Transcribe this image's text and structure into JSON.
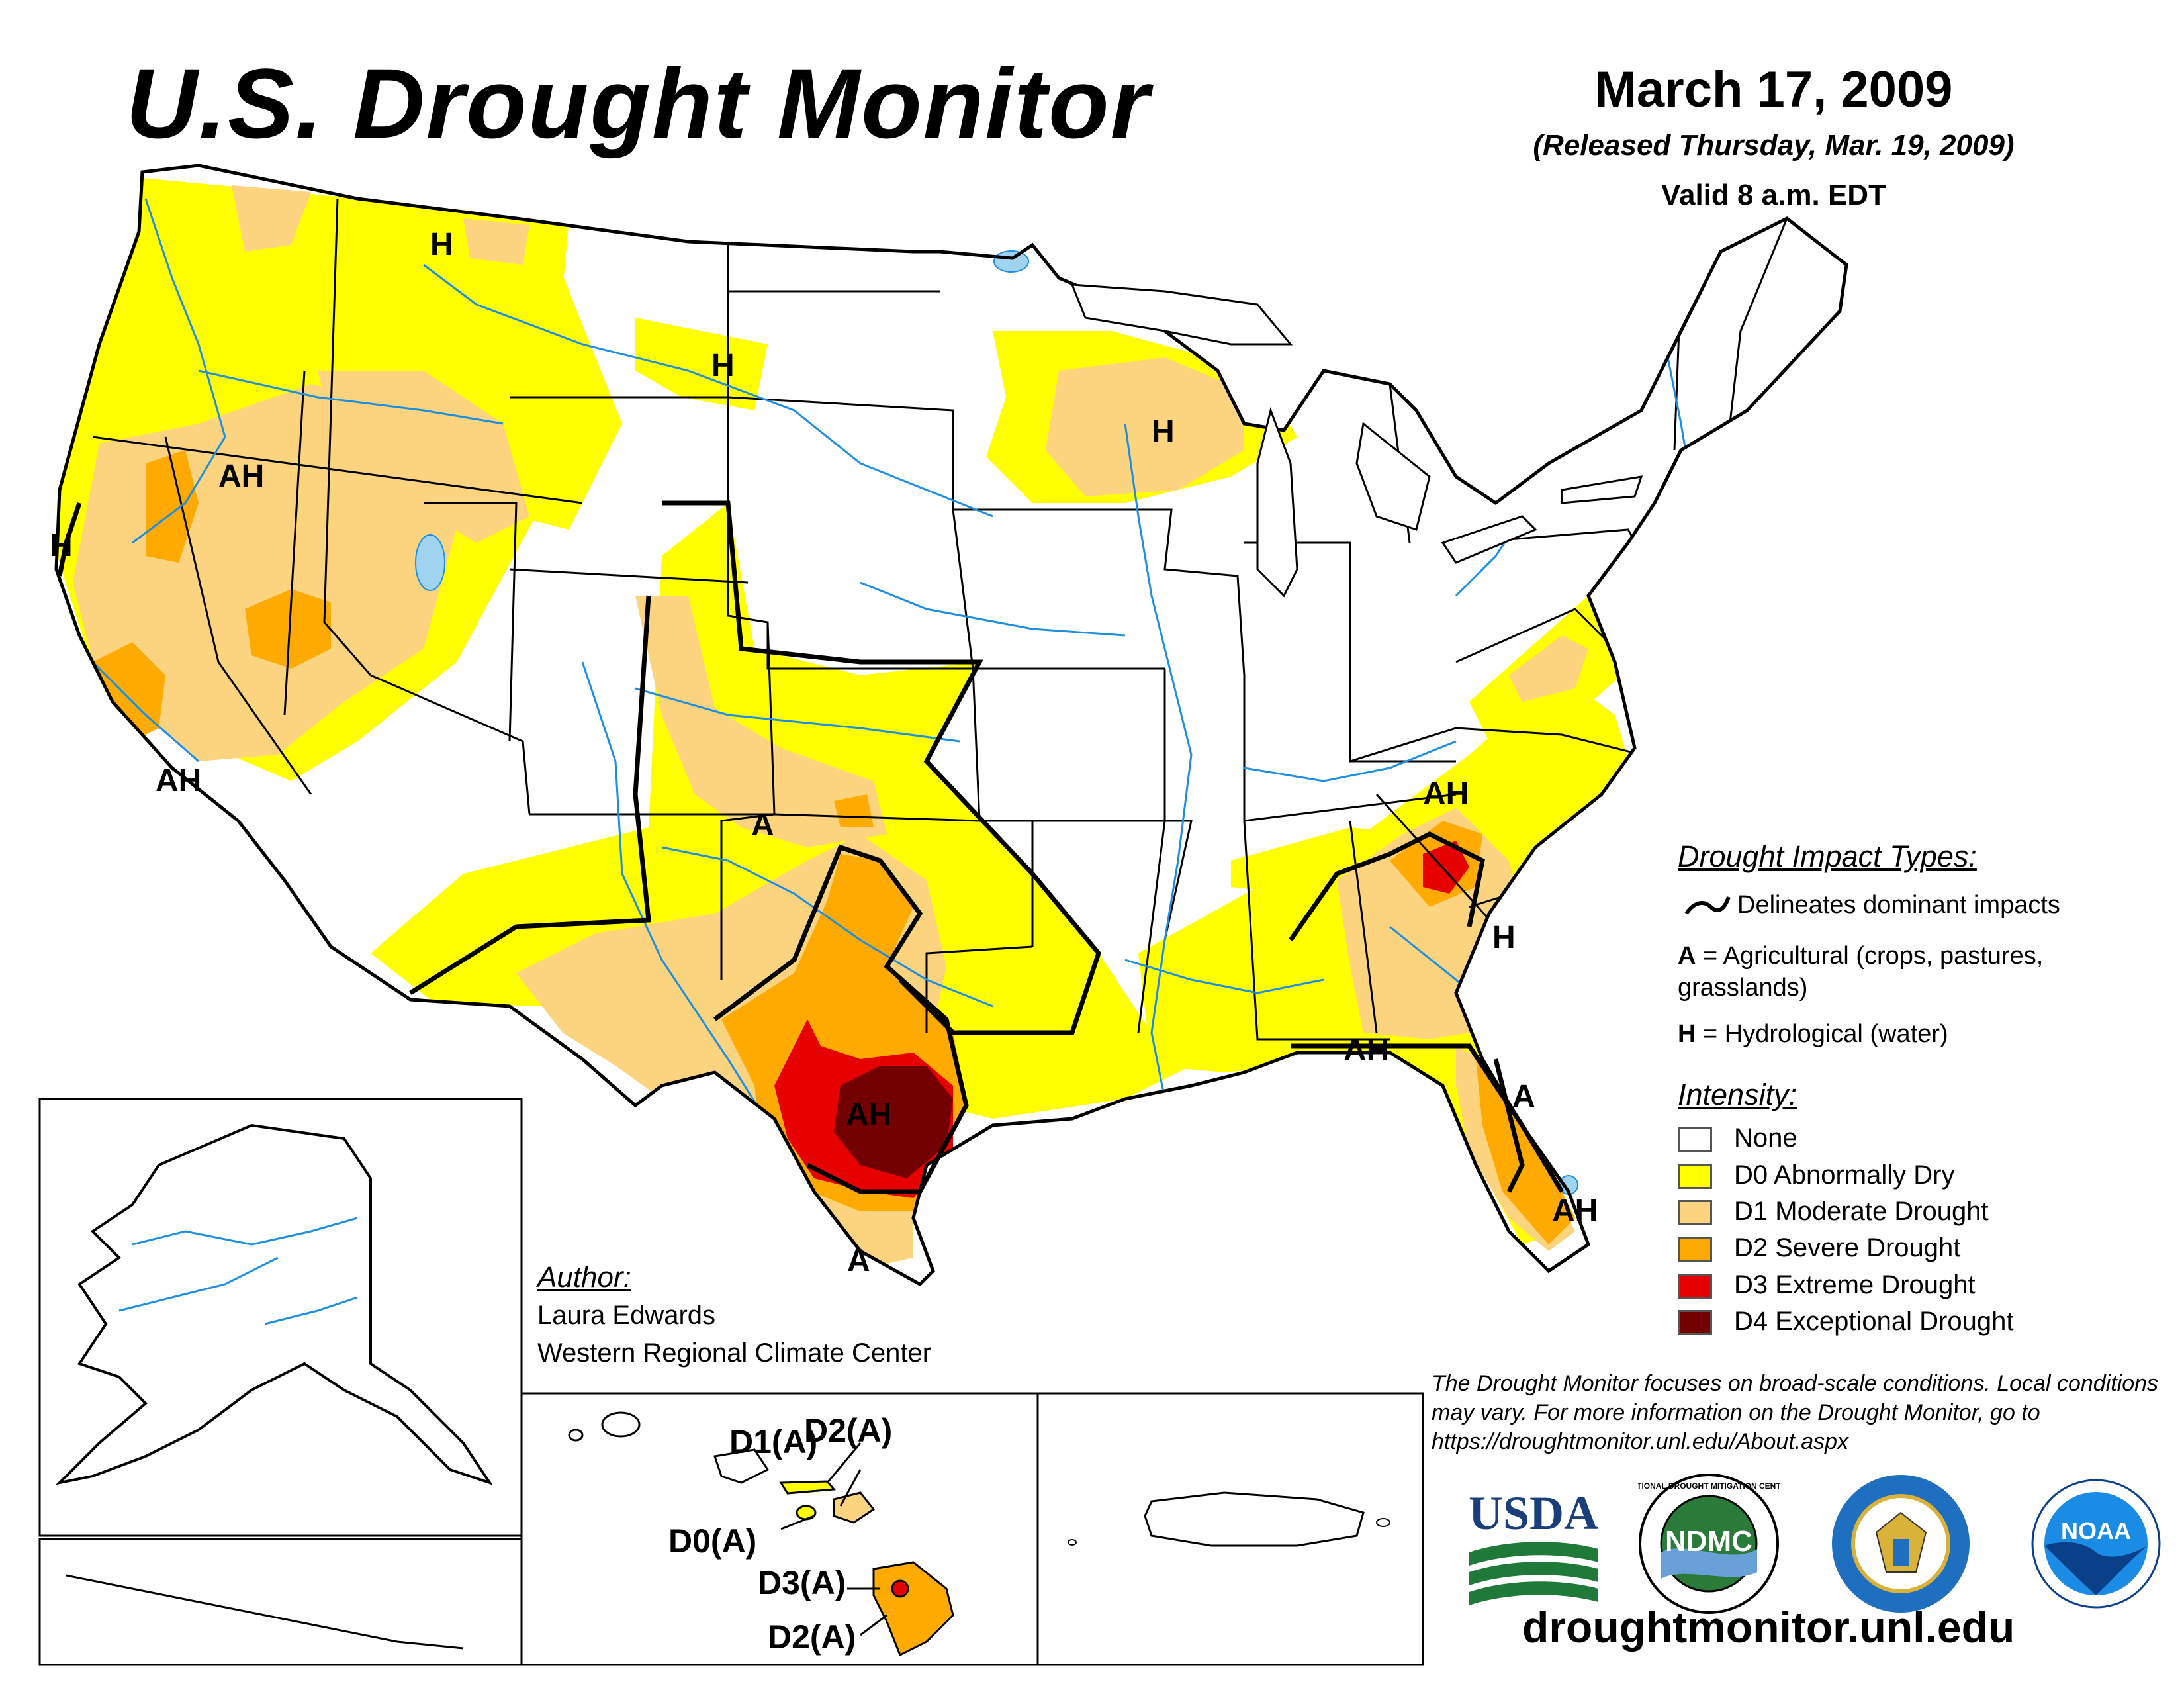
{
  "title": "U.S. Drought Monitor",
  "date": {
    "main": "March 17, 2009",
    "released": "(Released Thursday, Mar. 19, 2009)",
    "valid": "Valid 8 a.m. EDT"
  },
  "legend": {
    "impact_title": "Drought Impact Types:",
    "delineates": "Delineates dominant impacts",
    "ag_code": "A",
    "ag_text": " = Agricultural (crops, pastures, grasslands)",
    "hy_code": "H",
    "hy_text": " = Hydrological (water)",
    "intensity_title": "Intensity:",
    "levels": [
      {
        "label": "None",
        "color": "#ffffff"
      },
      {
        "label": "D0 Abnormally Dry",
        "color": "#ffff00"
      },
      {
        "label": "D1 Moderate Drought",
        "color": "#fcd37f"
      },
      {
        "label": "D2 Severe Drought",
        "color": "#ffaa00"
      },
      {
        "label": "D3 Extreme Drought",
        "color": "#e60000"
      },
      {
        "label": "D4 Exceptional Drought",
        "color": "#730000"
      }
    ]
  },
  "author": {
    "label": "Author:",
    "name": "Laura Edwards",
    "org": "Western Regional Climate Center"
  },
  "disclaimer": "The Drought Monitor focuses on broad-scale conditions. Local conditions may vary. For more information on the Drought Monitor, go to https://droughtmonitor.unl.edu/About.aspx",
  "url": "droughtmonitor.unl.edu",
  "logos": {
    "usda": "USDA",
    "ndmc": "NDMC",
    "ndmc_ring": "NATIONAL DROUGHT MITIGATION CENTER",
    "noaa": "NOAA"
  },
  "map_labels": {
    "wa_h": "H",
    "mt_h": "H",
    "nd_h": "H",
    "wi_h": "H",
    "or_ah": "AH",
    "nv_ah": "AH",
    "ca_h": "H",
    "ca_ah": "AH",
    "ok_a": "A",
    "tx_ah": "AH",
    "tx_a": "A",
    "va_ah": "AH",
    "sc_h": "H",
    "al_ah": "AH",
    "fl_a": "A",
    "fl_ah": "AH"
  },
  "hawaii_labels": {
    "d1a": "D1(A)",
    "d2a_top": "D2(A)",
    "d0a": "D0(A)",
    "d3a": "D3(A)",
    "d2a_bottom": "D2(A)"
  },
  "colors": {
    "water": "#1e8fe0",
    "lake": "#9fd3f0"
  }
}
